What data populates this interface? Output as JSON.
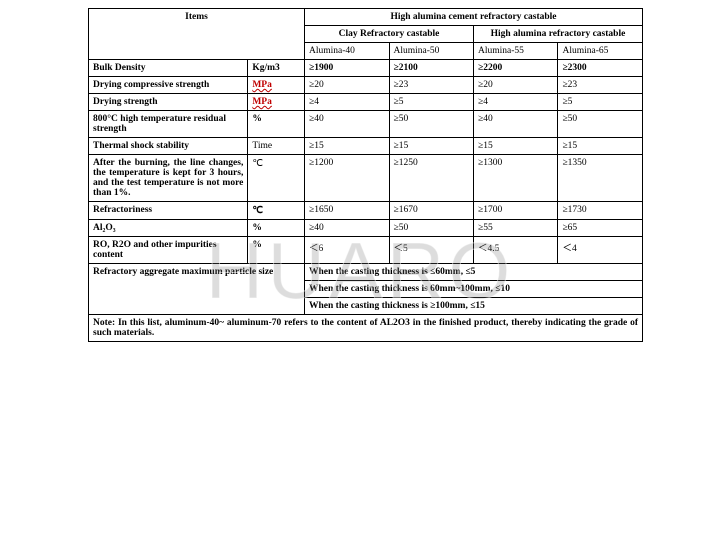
{
  "watermark": "HUARO",
  "header": {
    "items_label": "Items",
    "main_title": "High alumina cement refractory castable",
    "sub1": "Clay Refractory castable",
    "sub2": "High alumina refractory castable",
    "cols": [
      "Alumina-40",
      "Alumina-50",
      "Alumina-55",
      "Alumina-65"
    ]
  },
  "unit_colors": {
    "mpa": "#c00000",
    "normal": "#000000"
  },
  "rows": [
    {
      "label": "Bulk Density",
      "unit": "Kg/m3",
      "unit_style": "bold",
      "v": [
        "≥1900",
        "≥2100",
        "≥2200",
        "≥2300"
      ]
    },
    {
      "label": "Drying compressive strength",
      "unit": "MPa",
      "unit_style": "red",
      "v": [
        "≥20",
        "≥23",
        "≥20",
        "≥23"
      ]
    },
    {
      "label": "Drying strength",
      "unit": "MPa",
      "unit_style": "red",
      "v": [
        "≥4",
        "≥5",
        "≥4",
        "≥5"
      ]
    },
    {
      "label": "800°C high temperature residual strength",
      "unit": "%",
      "unit_style": "bold",
      "v": [
        "≥40",
        "≥50",
        "≥40",
        "≥50"
      ]
    },
    {
      "label": "Thermal shock stability",
      "unit": "Time",
      "unit_style": "normal",
      "v": [
        "≥15",
        "≥15",
        "≥15",
        "≥15"
      ]
    },
    {
      "label": "After the burning, the line changes, the temperature is kept for 3 hours, and the test temperature is not more than 1%.",
      "unit": "℃",
      "unit_style": "normal",
      "v": [
        "≥1200",
        "≥1250",
        "≥1300",
        "≥1350"
      ]
    },
    {
      "label": "Refractoriness",
      "unit": "℃",
      "unit_style": "bold",
      "v": [
        "≥1650",
        "≥1670",
        "≥1700",
        "≥1730"
      ]
    },
    {
      "label": "Al₂O₃",
      "unit": "%",
      "unit_style": "bold",
      "v": [
        "≥40",
        "≥50",
        "≥55",
        "≥65"
      ]
    },
    {
      "label": "RO, R2O and other impurities content",
      "unit": "%",
      "unit_style": "bold",
      "v": [
        "＜6",
        "＜5",
        "＜4.5",
        "＜4"
      ]
    }
  ],
  "agg": {
    "label": "Refractory aggregate maximum particle size",
    "lines": [
      "When the casting thickness is ≤60mm, ≤5",
      "When the casting thickness is 60mm~100mm, ≤10",
      "When the casting thickness is ≥100mm, ≤15"
    ]
  },
  "note": "Note: In this list, aluminum-40~ aluminum-70 refers to the content of AL2O3 in the finished product, thereby indicating the grade of such materials."
}
